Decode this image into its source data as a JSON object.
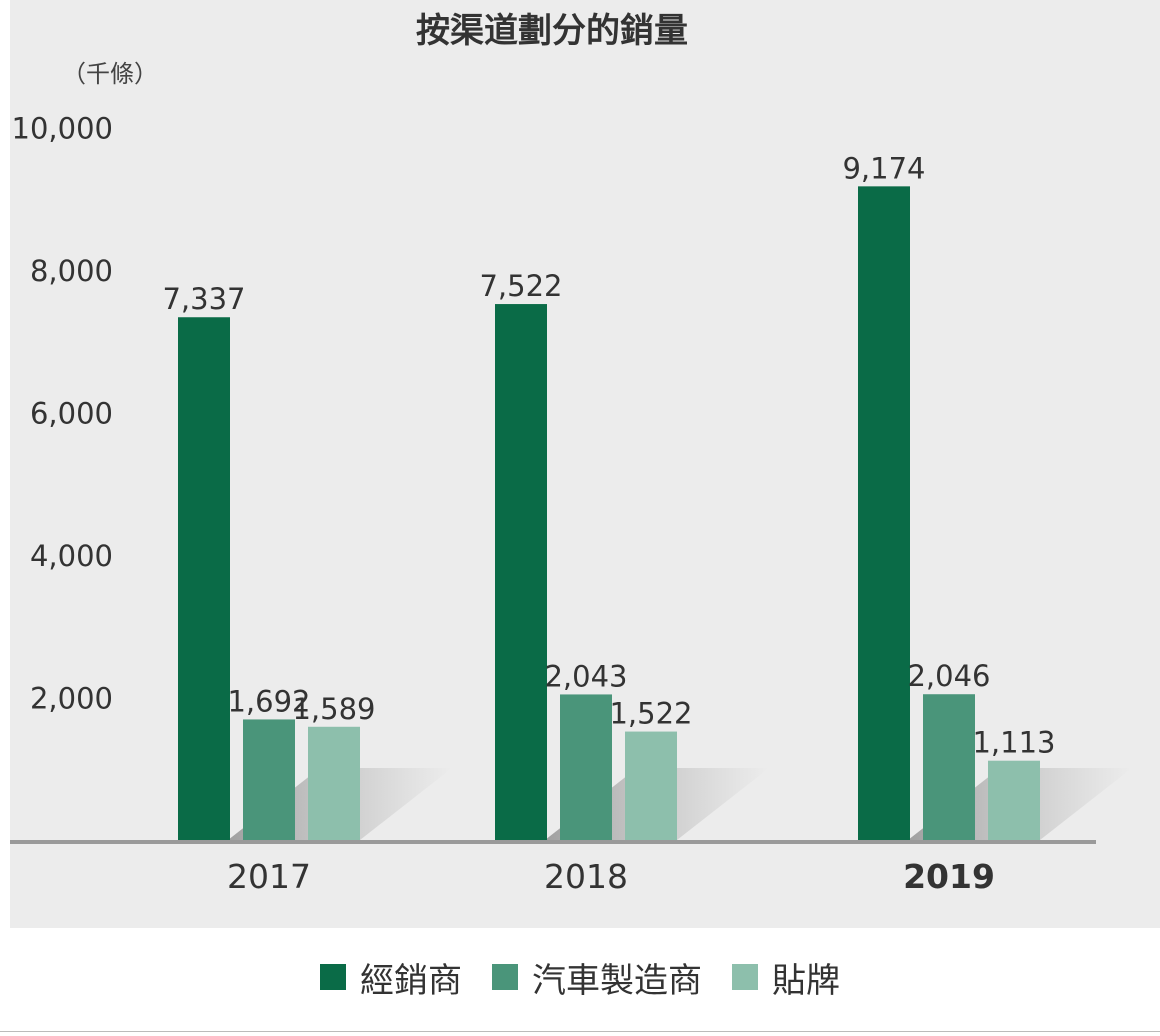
{
  "chart_data": {
    "type": "bar",
    "title": "按渠道劃分的銷量",
    "unit_label": "（千條）",
    "categories": [
      "2017",
      "2018",
      "2019"
    ],
    "bold_category": "2019",
    "ylim": [
      0,
      10000
    ],
    "y_ticks": [
      "2,000",
      "4,000",
      "6,000",
      "8,000",
      "10,000"
    ],
    "y_tick_values": [
      2000,
      4000,
      6000,
      8000,
      10000
    ],
    "series": [
      {
        "name": "經銷商",
        "color": "#0a6b47",
        "values": [
          7337,
          7522,
          9174
        ],
        "labels": [
          "7,337",
          "7,522",
          "9,174"
        ]
      },
      {
        "name": "汽車製造商",
        "color": "#4a957a",
        "values": [
          1692,
          2043,
          2046
        ],
        "labels": [
          "1,692",
          "2,043",
          "2,046"
        ]
      },
      {
        "name": "貼牌",
        "color": "#8dbfac",
        "values": [
          1589,
          1522,
          1113
        ],
        "labels": [
          "1,589",
          "1,522",
          "1,113"
        ]
      }
    ],
    "legend_position": "bottom",
    "grid": false
  }
}
